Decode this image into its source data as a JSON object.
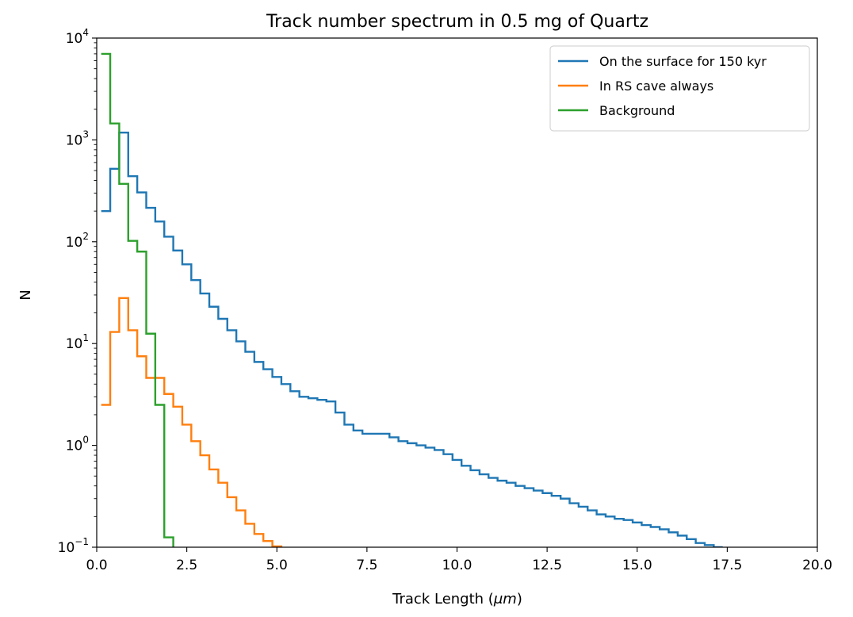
{
  "chart_data": {
    "type": "line",
    "drawstyle": "steps-post",
    "title": "Track number spectrum in 0.5 mg of Quartz",
    "xlabel_prefix": "Track Length (",
    "xlabel_unit": "μm",
    "xlabel_suffix": ")",
    "ylabel": "N",
    "yscale": "log",
    "xlim": [
      0,
      20
    ],
    "ylim": [
      0.1,
      10000
    ],
    "xticks": [
      0,
      2.5,
      5,
      7.5,
      10,
      12.5,
      15,
      17.5,
      20
    ],
    "xtick_labels": [
      "0.0",
      "2.5",
      "5.0",
      "7.5",
      "10.0",
      "12.5",
      "15.0",
      "17.5",
      "20.0"
    ],
    "yticks": [
      {
        "value": 0.1,
        "base": "10",
        "exp": "−1"
      },
      {
        "value": 1,
        "base": "10",
        "exp": "0"
      },
      {
        "value": 10,
        "base": "10",
        "exp": "1"
      },
      {
        "value": 100,
        "base": "10",
        "exp": "2"
      },
      {
        "value": 1000,
        "base": "10",
        "exp": "3"
      },
      {
        "value": 10000,
        "base": "10",
        "exp": "4"
      }
    ],
    "grid": false,
    "legend_position": "top-right",
    "bin_width": 0.25,
    "series": [
      {
        "name": "On the surface for 150 kyr",
        "color": "#1f77b4",
        "x_start": 0.125,
        "values": [
          200,
          520,
          1180,
          440,
          305,
          215,
          158,
          112,
          82,
          60,
          42,
          31,
          23,
          17.5,
          13.5,
          10.5,
          8.3,
          6.6,
          5.6,
          4.7,
          4.0,
          3.4,
          3.0,
          2.9,
          2.8,
          2.7,
          2.1,
          1.6,
          1.4,
          1.3,
          1.3,
          1.3,
          1.2,
          1.1,
          1.05,
          1.0,
          0.95,
          0.9,
          0.82,
          0.72,
          0.63,
          0.57,
          0.52,
          0.48,
          0.45,
          0.43,
          0.4,
          0.38,
          0.36,
          0.34,
          0.32,
          0.3,
          0.27,
          0.25,
          0.23,
          0.21,
          0.2,
          0.19,
          0.185,
          0.175,
          0.165,
          0.158,
          0.15,
          0.14,
          0.13,
          0.12,
          0.11,
          0.105,
          0.1
        ]
      },
      {
        "name": "In RS cave always",
        "color": "#ff7f0e",
        "x_start": 0.125,
        "values": [
          2.5,
          13,
          28,
          13.5,
          7.5,
          4.6,
          4.6,
          3.2,
          2.4,
          1.6,
          1.1,
          0.8,
          0.58,
          0.43,
          0.31,
          0.23,
          0.17,
          0.135,
          0.115,
          0.102,
          0.095
        ]
      },
      {
        "name": "Background",
        "color": "#2ca02c",
        "x_start": 0.125,
        "values": [
          7000,
          1450,
          370,
          102,
          80,
          12.5,
          2.5,
          0.125,
          0.09
        ]
      }
    ]
  }
}
